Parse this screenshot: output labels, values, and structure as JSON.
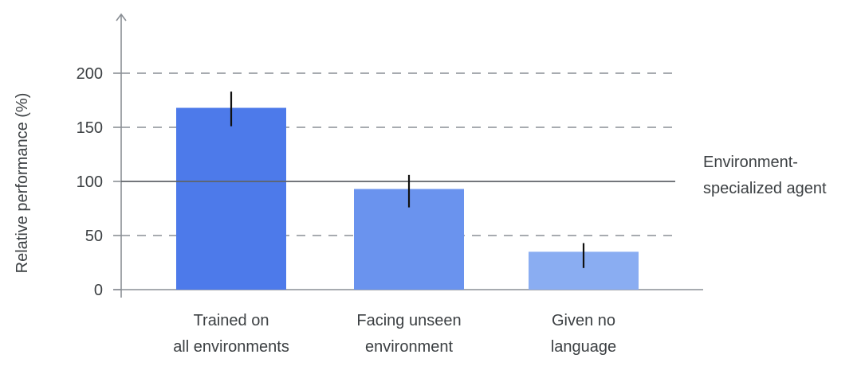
{
  "chart_data": {
    "type": "bar",
    "categories": [
      [
        "Trained on",
        "all environments"
      ],
      [
        "Facing unseen",
        "environment"
      ],
      [
        "Given no",
        "language"
      ]
    ],
    "values": [
      168,
      93,
      35
    ],
    "error_bars": [
      [
        151,
        183
      ],
      [
        76,
        106
      ],
      [
        20,
        43
      ]
    ],
    "bar_colors": [
      "#4d7aea",
      "#6a93ee",
      "#8aadf2"
    ],
    "ylabel": "Relative performance (%)",
    "ylim": [
      0,
      200
    ],
    "yticks": [
      0,
      50,
      100,
      150,
      200
    ],
    "reference_line": {
      "value": 100,
      "label": [
        "Environment-",
        "specialized agent"
      ]
    },
    "grid": "dashed horizontal at 50, 150, 200",
    "axis_color": "#8a8f95",
    "grid_color": "#8a8f95",
    "reference_color": "#5f6368"
  }
}
